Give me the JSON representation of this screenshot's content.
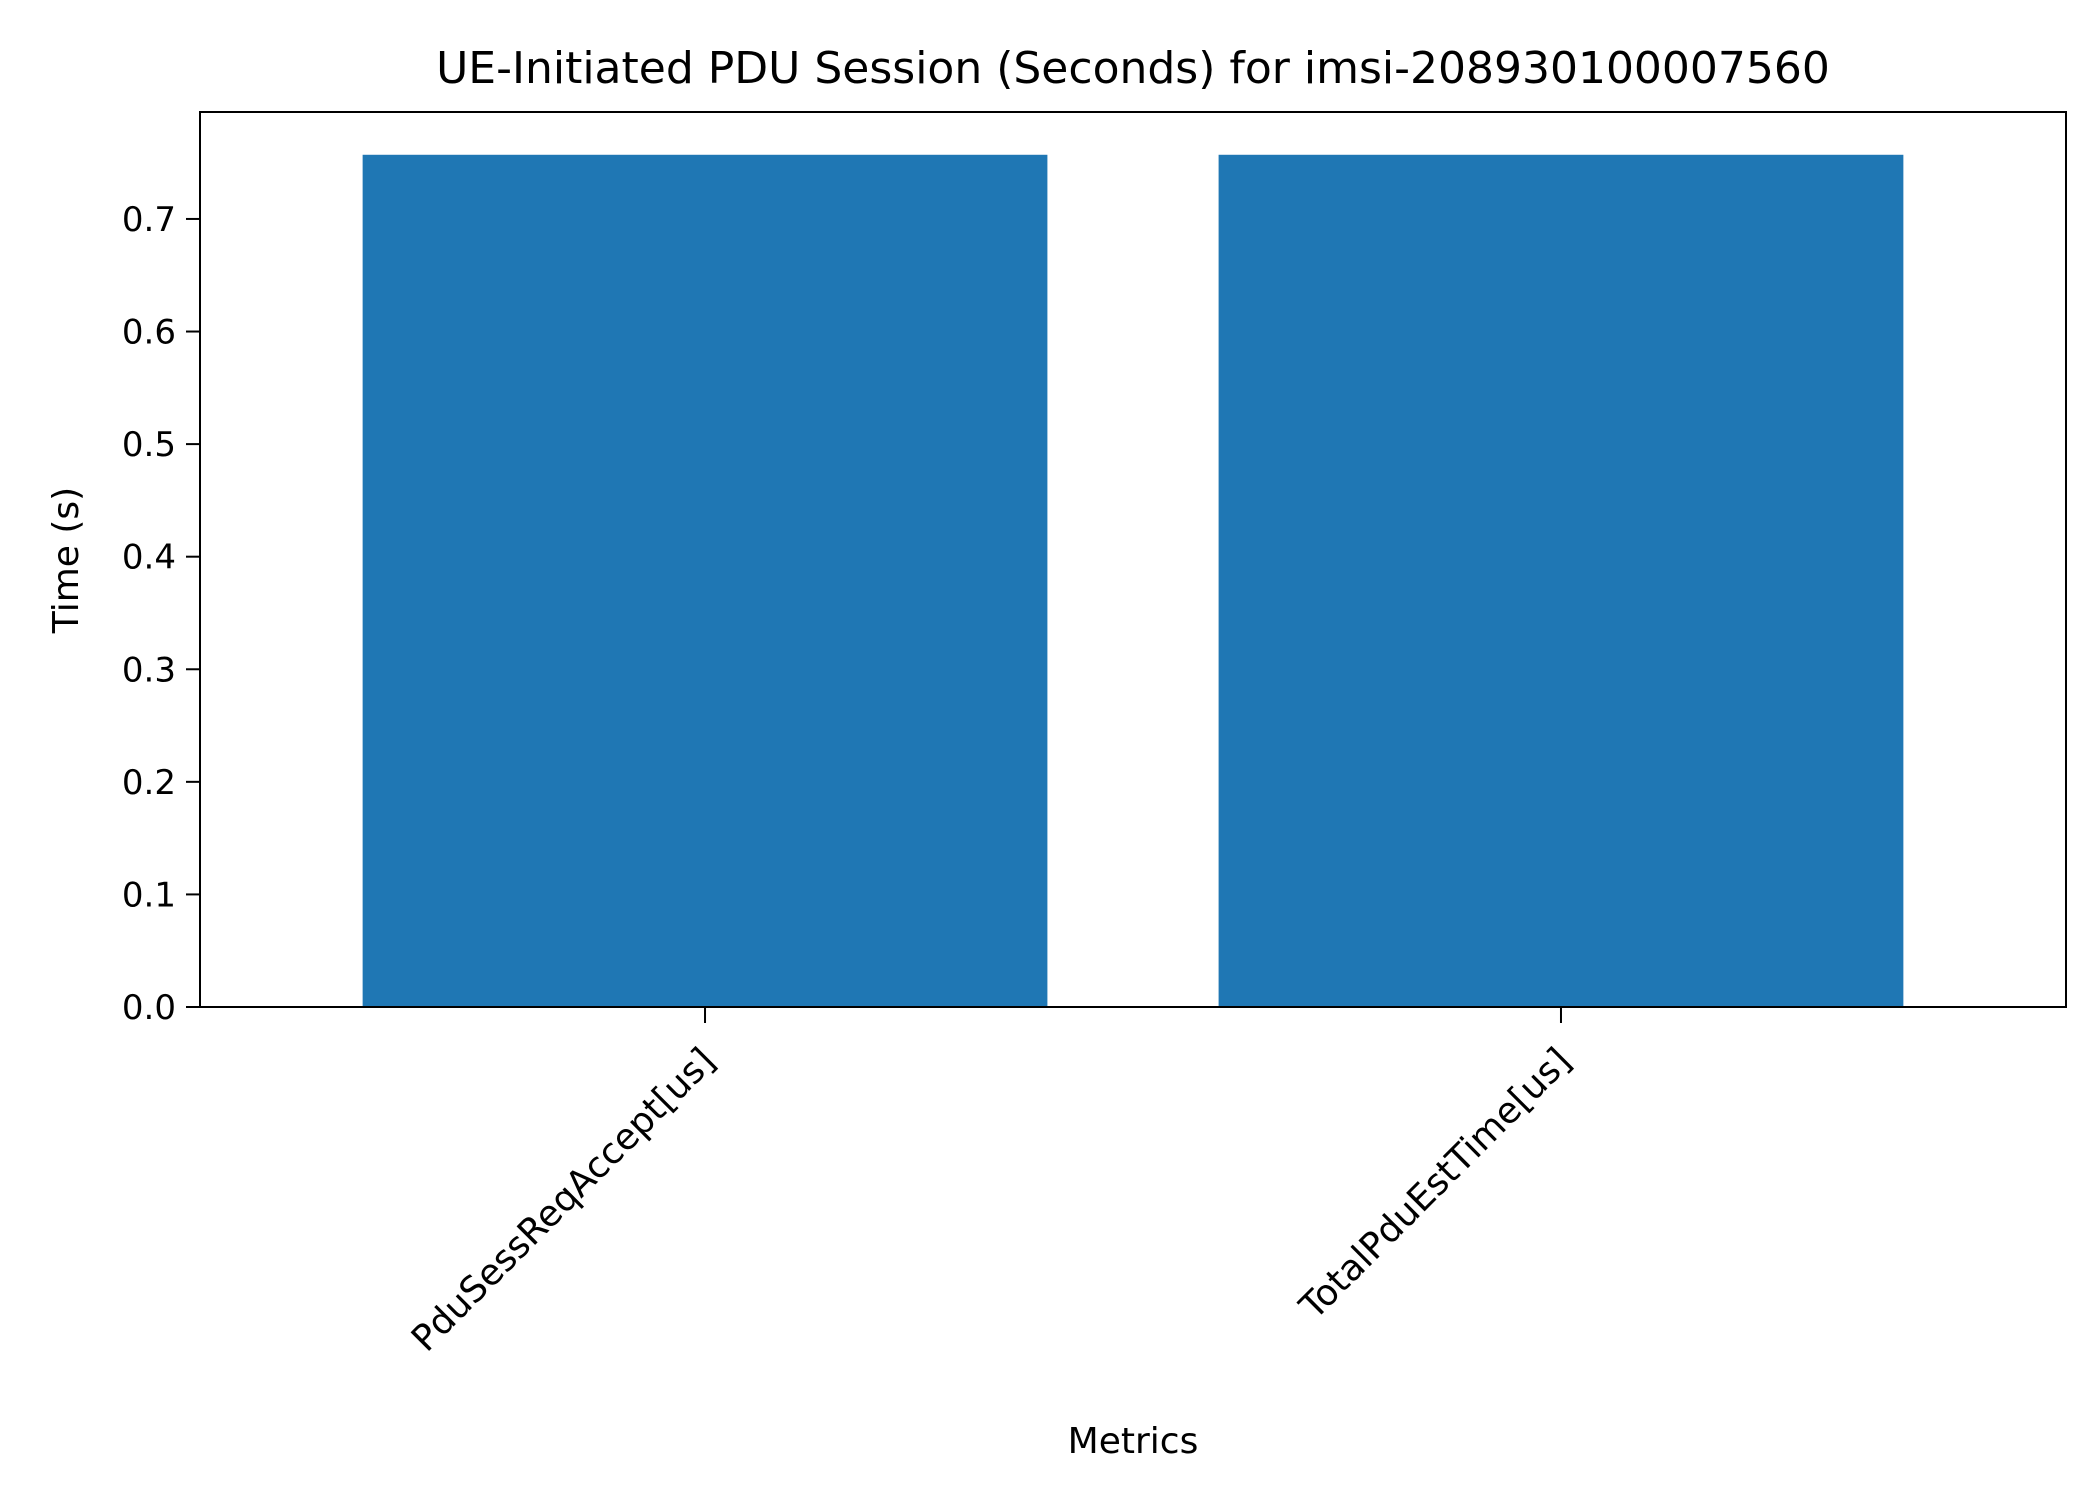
{
  "chart_data": {
    "type": "bar",
    "title": "UE-Initiated PDU Session (Seconds) for imsi-208930100007560",
    "xlabel": "Metrics",
    "ylabel": "Time (s)",
    "categories": [
      "PduSessReqAccept[us]",
      "TotalPduEstTime[us]"
    ],
    "values": [
      0.757,
      0.757
    ],
    "ylim": [
      0,
      0.795
    ],
    "yticks": [
      "0.0",
      "0.1",
      "0.2",
      "0.3",
      "0.4",
      "0.5",
      "0.6",
      "0.7"
    ],
    "grid": false,
    "legend": "none",
    "colors": {
      "bar": "#1f77b4",
      "axis": "#000000",
      "background": "#ffffff"
    }
  }
}
